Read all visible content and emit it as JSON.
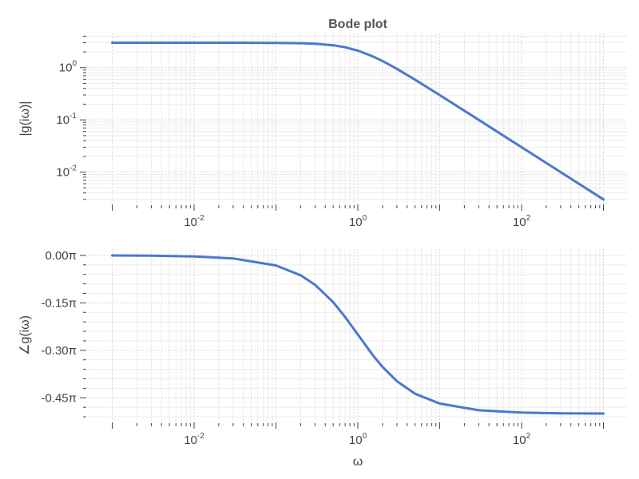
{
  "chart_data": {
    "type": "line",
    "title": "Bode plot",
    "xlabel": "ω",
    "x_scale": "log",
    "xlim": [
      0.001,
      1000
    ],
    "x_ticks": [
      0.01,
      1,
      100
    ],
    "x_tick_labels": [
      {
        "base": "10",
        "exp": "-2"
      },
      {
        "base": "10",
        "exp": "0"
      },
      {
        "base": "10",
        "exp": "2"
      }
    ],
    "grid": true,
    "legend": "none",
    "line_color": "#4a78cf",
    "panels": [
      {
        "id": "magnitude",
        "ylabel": "|g(iω)|",
        "y_scale": "log",
        "ylim": [
          0.0025,
          4.5
        ],
        "y_ticks": [
          0.01,
          0.1,
          1
        ],
        "y_tick_labels": [
          {
            "base": "10",
            "exp": "-2"
          },
          {
            "base": "10",
            "exp": "-1"
          },
          {
            "base": "10",
            "exp": "0"
          }
        ],
        "series": [
          {
            "x": [
              0.001,
              0.003,
              0.01,
              0.03,
              0.1,
              0.2,
              0.3,
              0.5,
              0.7,
              1,
              1.5,
              2,
              3,
              5,
              10,
              30,
              100,
              300,
              1000
            ],
            "y": [
              3.0,
              3.0,
              3.0,
              3.0,
              2.985,
              2.942,
              2.874,
              2.683,
              2.457,
              2.121,
              1.664,
              1.342,
              0.949,
              0.588,
              0.2985,
              0.09995,
              0.03,
              0.01,
              0.003
            ]
          }
        ]
      },
      {
        "id": "phase",
        "ylabel": "∠g(iω)",
        "ylim": [
          -0.525,
          0.02
        ],
        "y_unit": "π",
        "y_ticks": [
          0,
          -0.15,
          -0.3,
          -0.45
        ],
        "y_tick_labels": [
          "0.00π",
          "-0.15π",
          "-0.30π",
          "-0.45π"
        ],
        "series": [
          {
            "x": [
              0.001,
              0.003,
              0.01,
              0.03,
              0.1,
              0.2,
              0.3,
              0.5,
              0.7,
              1,
              1.5,
              2,
              3,
              5,
              10,
              30,
              100,
              300,
              1000
            ],
            "y": [
              -0.0003,
              -0.001,
              -0.0032,
              -0.0095,
              -0.0317,
              -0.0628,
              -0.0928,
              -0.1476,
              -0.1946,
              -0.25,
              -0.3128,
              -0.3524,
              -0.3976,
              -0.4372,
              -0.4683,
              -0.4894,
              -0.4968,
              -0.4989,
              -0.4997
            ]
          }
        ]
      }
    ]
  }
}
